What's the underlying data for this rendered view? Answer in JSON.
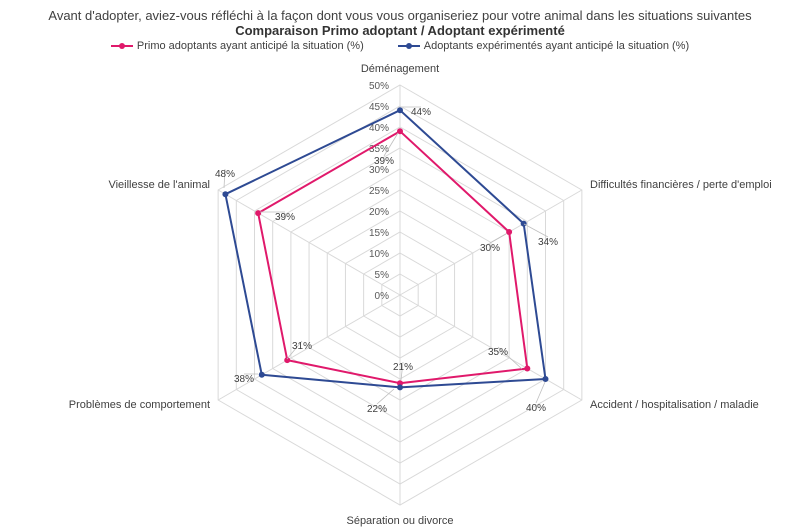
{
  "chart_data": {
    "type": "radar",
    "title": "Avant d'adopter, aviez-vous réfléchi à la façon dont vous vous organiseriez pour votre animal dans les situations suivantes",
    "subtitle": "Comparaison Primo adoptant / Adoptant expérimenté",
    "categories": [
      "Déménagement",
      "Difficultés financières / perte d'emploi",
      "Accident / hospitalisation / maladie",
      "Séparation ou divorce",
      "Problèmes de comportement",
      "Vieillesse de l'animal"
    ],
    "r_ticks": [
      "0%",
      "5%",
      "10%",
      "15%",
      "20%",
      "25%",
      "30%",
      "35%",
      "40%",
      "45%",
      "50%"
    ],
    "r_range": [
      0,
      50
    ],
    "series": [
      {
        "name": "Primo adoptants ayant anticipé la situation (%)",
        "color": "#E0196B",
        "values": [
          39,
          30,
          35,
          21,
          31,
          39
        ],
        "labels": [
          "39%",
          "30%",
          "35%",
          "21%",
          "31%",
          "39%"
        ]
      },
      {
        "name": "Adoptants expérimentés ayant anticipé la situation (%)",
        "color": "#2E4A93",
        "values": [
          44,
          34,
          40,
          22,
          38,
          48
        ],
        "labels": [
          "44%",
          "34%",
          "40%",
          "22%",
          "38%",
          "48%"
        ]
      }
    ],
    "legend": "top",
    "grid": true,
    "grid_color": "#D9D9D9"
  }
}
